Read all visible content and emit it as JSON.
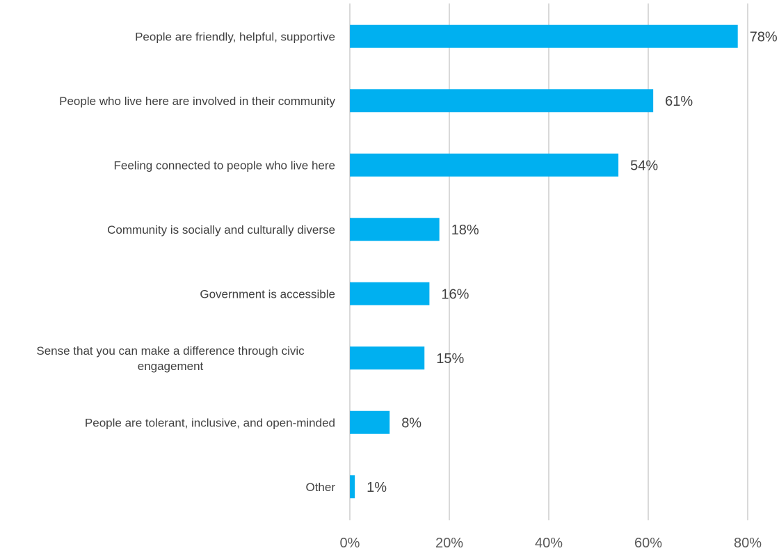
{
  "chart_data": {
    "type": "bar",
    "orientation": "horizontal",
    "categories": [
      [
        "People are friendly, helpful, supportive"
      ],
      [
        "People who live here are involved in their community"
      ],
      [
        "Feeling connected to people who live here"
      ],
      [
        "Community is socially and culturally diverse"
      ],
      [
        "Government is accessible"
      ],
      [
        "Sense that you can make a difference through civic",
        "engagement"
      ],
      [
        "People are tolerant, inclusive, and open-minded"
      ],
      [
        "Other"
      ]
    ],
    "values": [
      78,
      61,
      54,
      18,
      16,
      15,
      8,
      1
    ],
    "value_labels": [
      "78%",
      "61%",
      "54%",
      "18%",
      "16%",
      "15%",
      "8%",
      "1%"
    ],
    "xlim": [
      0,
      80
    ],
    "xticks": [
      0,
      20,
      40,
      60,
      80
    ],
    "xtick_labels": [
      "0%",
      "20%",
      "40%",
      "60%",
      "80%"
    ],
    "bar_color": "#00b0f0",
    "grid": true,
    "legend": "none"
  }
}
